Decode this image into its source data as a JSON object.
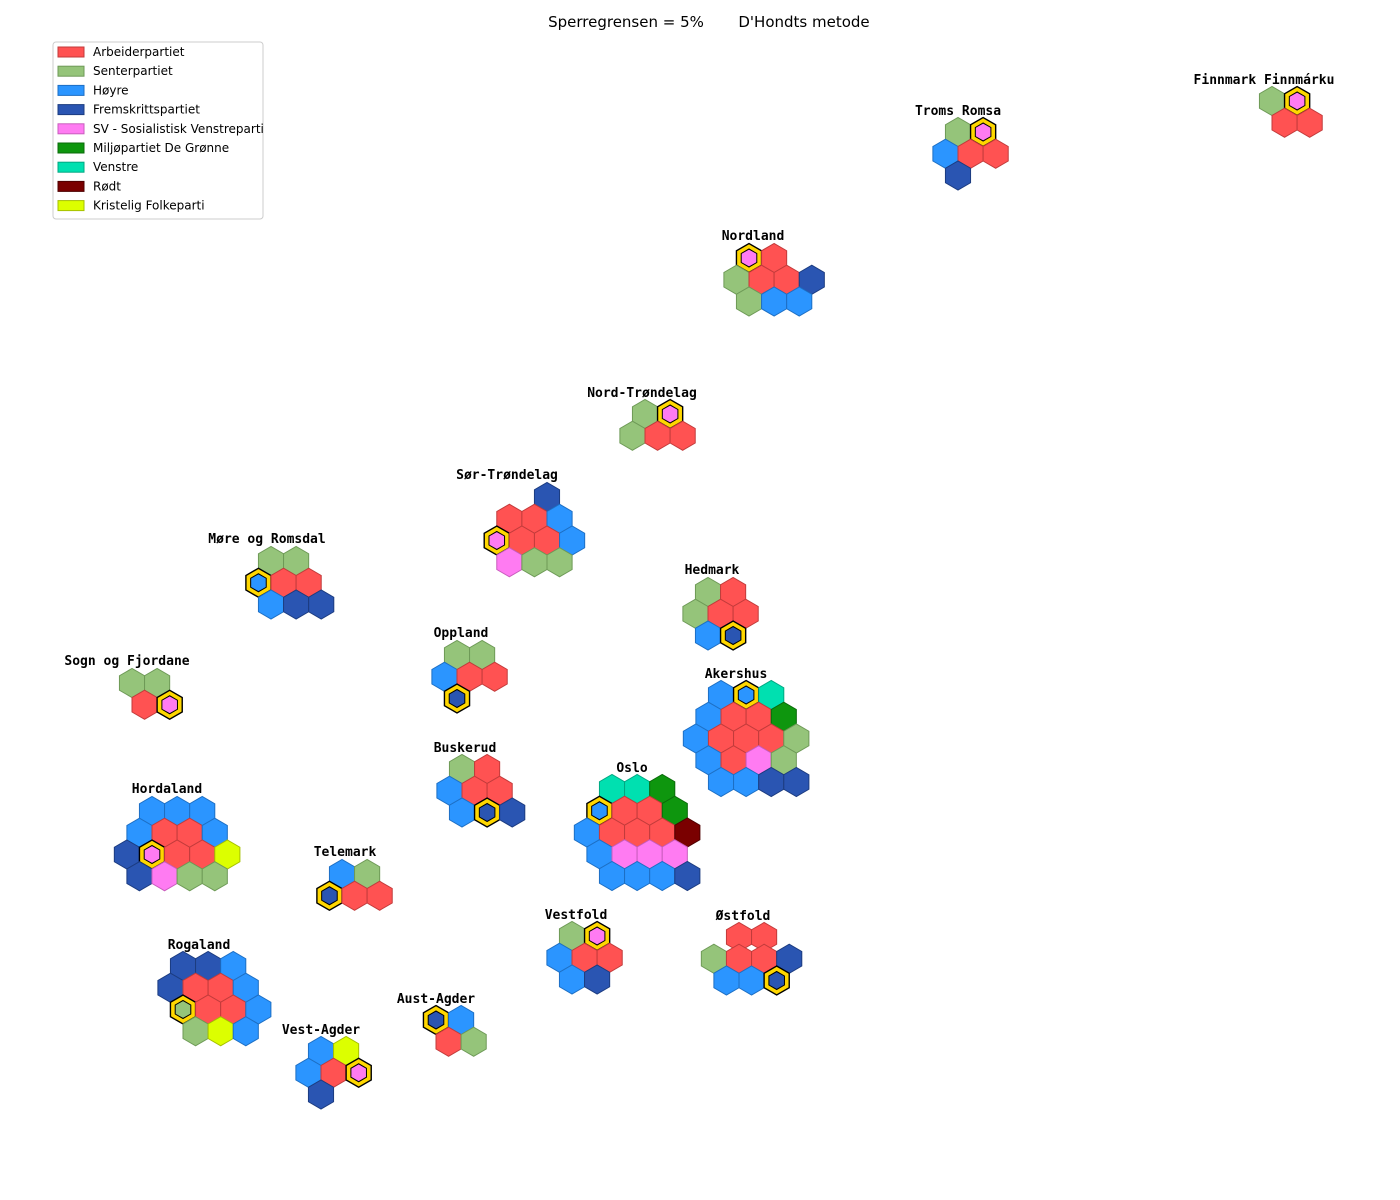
{
  "chart_data": {
    "type": "hexbin-seat-map",
    "title_left": "Sperregrensen = 5%",
    "title_right": "D'Hondts metode",
    "parties": [
      {
        "key": "Ap",
        "name": "Arbeiderpartiet",
        "color": "#ff5252",
        "edge": "#c23b3b"
      },
      {
        "key": "Sp",
        "name": "Senterpartiet",
        "color": "#95c47a",
        "edge": "#6e9a57"
      },
      {
        "key": "H",
        "name": "Høyre",
        "color": "#2b95ff",
        "edge": "#1d6fc4"
      },
      {
        "key": "FrP",
        "name": "Fremskrittspartiet",
        "color": "#2a55b2",
        "edge": "#1c3c80"
      },
      {
        "key": "SV",
        "name": "SV - Sosialistisk Venstreparti",
        "color": "#ff7bf2",
        "edge": "#c95dbd"
      },
      {
        "key": "MDG",
        "name": "Miljøpartiet De Grønne",
        "color": "#0e960e",
        "edge": "#0a6b0a"
      },
      {
        "key": "V",
        "name": "Venstre",
        "color": "#00e0b0",
        "edge": "#00a882"
      },
      {
        "key": "R",
        "name": "Rødt",
        "color": "#7a0000",
        "edge": "#4e0000"
      },
      {
        "key": "KrF",
        "name": "Kristelig Folkeparti",
        "color": "#dcff00",
        "edge": "#a6c000"
      }
    ],
    "regions": [
      {
        "name": "Finnmark Finnmárku",
        "rows": [
          [
            "Sp",
            "SV*"
          ],
          [
            "Ap",
            "Ap"
          ]
        ]
      },
      {
        "name": "Troms Romsa",
        "rows": [
          [
            "Sp",
            "SV*"
          ],
          [
            "H",
            "Ap",
            "Ap"
          ],
          [
            "FrP"
          ]
        ]
      },
      {
        "name": "Nordland",
        "rows": [
          [
            "SV*",
            "Ap"
          ],
          [
            "Sp",
            "Ap",
            "Ap",
            "FrP"
          ],
          [
            "Sp",
            "H",
            "H"
          ]
        ]
      },
      {
        "name": "Nord-Trøndelag",
        "rows": [
          [
            "Sp",
            "SV*"
          ],
          [
            "Sp",
            "Ap",
            "Ap"
          ]
        ]
      },
      {
        "name": "Sør-Trøndelag",
        "rows": [
          [
            "FrP"
          ],
          [
            "Ap",
            "Ap",
            "H"
          ],
          [
            "SV*",
            "Ap",
            "Ap",
            "H"
          ],
          [
            "SV",
            "Sp",
            "Sp"
          ]
        ]
      },
      {
        "name": "Møre og Romsdal",
        "rows": [
          [
            "Sp",
            "Sp"
          ],
          [
            "H*",
            "Ap",
            "Ap"
          ],
          [
            "H",
            "FrP",
            "FrP"
          ]
        ]
      },
      {
        "name": "Hedmark",
        "rows": [
          [
            "Sp",
            "Ap"
          ],
          [
            "Sp",
            "Ap",
            "Ap"
          ],
          [
            "H",
            "FrP*"
          ]
        ]
      },
      {
        "name": "Oppland",
        "rows": [
          [
            "Sp",
            "Sp"
          ],
          [
            "H",
            "Ap",
            "Ap"
          ],
          [
            "FrP*"
          ]
        ]
      },
      {
        "name": "Sogn og Fjordane",
        "rows": [
          [
            "Sp",
            "Sp"
          ],
          [
            "Ap",
            "SV*"
          ]
        ]
      },
      {
        "name": "Akershus",
        "rows": [
          [
            "H",
            "H*",
            "V"
          ],
          [
            "H",
            "Ap",
            "Ap",
            "MDG"
          ],
          [
            "H",
            "Ap",
            "Ap",
            "Ap",
            "Sp"
          ],
          [
            "H",
            "Ap",
            "SV",
            "Sp"
          ],
          [
            "H",
            "H",
            "FrP",
            "FrP"
          ]
        ]
      },
      {
        "name": "Buskerud",
        "rows": [
          [
            "Sp",
            "Ap"
          ],
          [
            "H",
            "Ap",
            "Ap"
          ],
          [
            "H",
            "FrP*",
            "FrP"
          ]
        ]
      },
      {
        "name": "Oslo",
        "rows": [
          [
            "V",
            "V",
            "MDG"
          ],
          [
            "H*",
            "Ap",
            "Ap",
            "MDG"
          ],
          [
            "H",
            "Ap",
            "Ap",
            "Ap",
            "R"
          ],
          [
            "H",
            "SV",
            "SV",
            "SV"
          ],
          [
            "H",
            "H",
            "H",
            "FrP"
          ]
        ]
      },
      {
        "name": "Hordaland",
        "rows": [
          [
            "H",
            "H",
            "H"
          ],
          [
            "H",
            "Ap",
            "Ap",
            "H"
          ],
          [
            "FrP",
            "SV*",
            "Ap",
            "Ap",
            "KrF"
          ],
          [
            "FrP",
            "SV",
            "Sp",
            "Sp"
          ]
        ]
      },
      {
        "name": "Telemark",
        "rows": [
          [
            "H",
            "Sp"
          ],
          [
            "FrP*",
            "Ap",
            "Ap"
          ]
        ]
      },
      {
        "name": "Vestfold",
        "rows": [
          [
            "Sp",
            "SV*"
          ],
          [
            "H",
            "Ap",
            "Ap"
          ],
          [
            "H",
            "FrP"
          ]
        ]
      },
      {
        "name": "Østfold",
        "rows": [
          [
            "Ap",
            "Ap"
          ],
          [
            "Sp",
            "Ap",
            "Ap",
            "FrP"
          ],
          [
            "H",
            "H",
            "FrP*"
          ]
        ]
      },
      {
        "name": "Rogaland",
        "rows": [
          [
            "FrP",
            "FrP",
            "H"
          ],
          [
            "FrP",
            "Ap",
            "Ap",
            "H"
          ],
          [
            "Sp*",
            "Ap",
            "Ap",
            "H"
          ],
          [
            "Sp",
            "KrF",
            "H"
          ]
        ]
      },
      {
        "name": "Aust-Agder",
        "rows": [
          [
            "FrP*",
            "H"
          ],
          [
            "Ap",
            "Sp"
          ]
        ]
      },
      {
        "name": "Vest-Agder",
        "rows": [
          [
            "H",
            "KrF"
          ],
          [
            "H",
            "Ap",
            "SV*"
          ],
          [
            "FrP"
          ]
        ]
      }
    ],
    "leveling_seat_marker": "*"
  }
}
